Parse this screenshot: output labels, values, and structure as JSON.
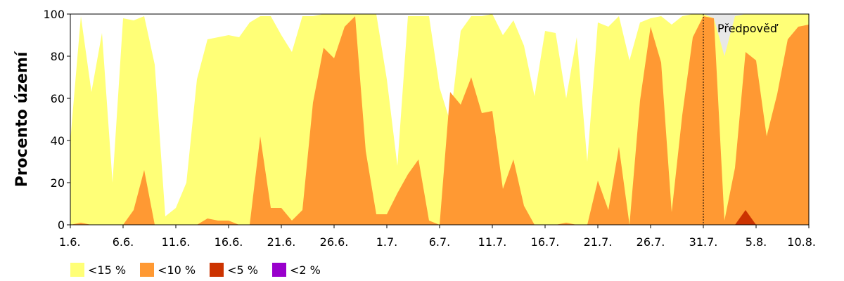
{
  "chart_data": {
    "type": "area",
    "ylabel": "Procento území",
    "ylim": [
      0,
      100
    ],
    "yticks": [
      "0",
      "20",
      "40",
      "60",
      "80",
      "100"
    ],
    "xticks": [
      "1.6.",
      "6.6.",
      "11.6.",
      "16.6.",
      "21.6.",
      "26.6.",
      "1.7.",
      "6.7.",
      "11.7.",
      "16.7.",
      "21.7.",
      "26.7.",
      "31.7.",
      "5.8.",
      "10.8."
    ],
    "forecast_label": "Předpověď",
    "forecast_start": "31.7.",
    "n_days": 71,
    "series": [
      {
        "name": "<15 %",
        "color": "#ffff77",
        "values": [
          40,
          99,
          63,
          91,
          20,
          98,
          97,
          99,
          76,
          4,
          8,
          20,
          69,
          88,
          89,
          90,
          89,
          96,
          99,
          99,
          90,
          82,
          99,
          99,
          100,
          100,
          100,
          100,
          100,
          100,
          69,
          28,
          99,
          99,
          99,
          65,
          49,
          92,
          99,
          99,
          100,
          90,
          97,
          85,
          61,
          92,
          91,
          60,
          89,
          30,
          96,
          94,
          99,
          78,
          96,
          98,
          99,
          95,
          99,
          100,
          100,
          98,
          80,
          99,
          100,
          100,
          100,
          100,
          100,
          100,
          100
        ]
      },
      {
        "name": "<10 %",
        "color": "#ff9933",
        "values": [
          0,
          1,
          0,
          0,
          0,
          0,
          7,
          26,
          0,
          0,
          0,
          0,
          0,
          3,
          2,
          2,
          0,
          0,
          42,
          8,
          8,
          2,
          7,
          58,
          84,
          79,
          94,
          99,
          35,
          5,
          5,
          15,
          24,
          31,
          2,
          0,
          63,
          57,
          70,
          53,
          54,
          17,
          31,
          9,
          0,
          0,
          0,
          1,
          0,
          0,
          21,
          7,
          37,
          0,
          59,
          94,
          77,
          6,
          52,
          89,
          99,
          98,
          2,
          27,
          82,
          78,
          42,
          62,
          88,
          94,
          95
        ]
      },
      {
        "name": "<5 %",
        "color": "#cc3300",
        "values": [
          0,
          0,
          0,
          0,
          0,
          0,
          0,
          0,
          0,
          0,
          0,
          0,
          0,
          0,
          0,
          0,
          0,
          0,
          0,
          0,
          0,
          0,
          0,
          0,
          0,
          0,
          0,
          0,
          0,
          0,
          0,
          0,
          0,
          0,
          0,
          0,
          0,
          0,
          0,
          0,
          0,
          0,
          0,
          0,
          0,
          0,
          0,
          0,
          0,
          0,
          0,
          0,
          0,
          0,
          0,
          0,
          0,
          0,
          0,
          0,
          0,
          0,
          0,
          0,
          7,
          0,
          0,
          0,
          0,
          0,
          0
        ]
      },
      {
        "name": "<2 %",
        "color": "#9900cc",
        "values": [
          0,
          0,
          0,
          0,
          0,
          0,
          0,
          0,
          0,
          0,
          0,
          0,
          0,
          0,
          0,
          0,
          0,
          0,
          0,
          0,
          0,
          0,
          0,
          0,
          0,
          0,
          0,
          0,
          0,
          0,
          0,
          0,
          0,
          0,
          0,
          0,
          0,
          0,
          0,
          0,
          0,
          0,
          0,
          0,
          0,
          0,
          0,
          0,
          0,
          0,
          0,
          0,
          0,
          0,
          0,
          0,
          0,
          0,
          0,
          0,
          0,
          0,
          0,
          0,
          0,
          0,
          0,
          0,
          0,
          0,
          0
        ]
      }
    ],
    "forecast_shade_color": "#e8e8e8",
    "grid": false,
    "legend_position": "bottom-left"
  }
}
